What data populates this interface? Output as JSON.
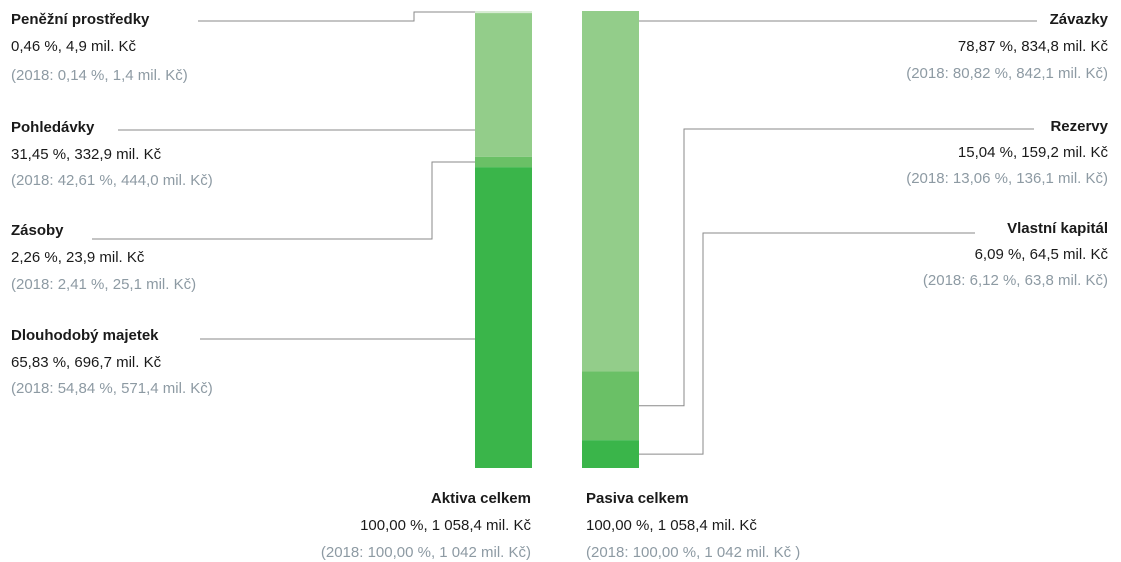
{
  "colors": {
    "dark": "#3ab54a",
    "mid": "#6ac066",
    "light": "#93cd8a",
    "lightest": "#d7ecd3",
    "prev_text": "#8d9aa3",
    "text": "#1a1a1a",
    "leader": "#8a8a8a"
  },
  "chart_data": {
    "type": "bar",
    "stacked": true,
    "bars": [
      {
        "name": "Aktiva",
        "total": {
          "label": "Aktiva celkem",
          "value": "100,00 %, 1 058,4 mil. Kč",
          "prev": "(2018: 100,00 %, 1 042 mil. Kč)"
        },
        "segments": [
          {
            "name": "Peněžní prostředky",
            "percent": 0.46,
            "amount": 4.9,
            "value": "0,46 %, 4,9 mil. Kč",
            "prev": "(2018: 0,14 %, 1,4 mil. Kč)",
            "color": "lightest"
          },
          {
            "name": "Pohledávky",
            "percent": 31.45,
            "amount": 332.9,
            "value": "31,45 %, 332,9 mil. Kč",
            "prev": "(2018: 42,61 %, 444,0 mil. Kč)",
            "color": "light"
          },
          {
            "name": "Zásoby",
            "percent": 2.26,
            "amount": 23.9,
            "value": "2,26 %, 23,9 mil. Kč",
            "prev": "(2018: 2,41 %, 25,1 mil. Kč)",
            "color": "mid"
          },
          {
            "name": "Dlouhodobý majetek",
            "percent": 65.83,
            "amount": 696.7,
            "value": "65,83 %, 696,7 mil. Kč",
            "prev": "(2018: 54,84 %, 571,4 mil. Kč)",
            "color": "dark"
          }
        ]
      },
      {
        "name": "Pasiva",
        "total": {
          "label": "Pasiva celkem",
          "value": "100,00 %, 1 058,4 mil. Kč",
          "prev": "(2018: 100,00 %, 1 042 mil. Kč )"
        },
        "segments": [
          {
            "name": "Závazky",
            "percent": 78.87,
            "amount": 834.8,
            "value": "78,87 %, 834,8 mil. Kč",
            "prev": "(2018: 80,82 %, 842,1 mil. Kč)",
            "color": "light"
          },
          {
            "name": "Rezervy",
            "percent": 15.04,
            "amount": 159.2,
            "value": "15,04 %, 159,2 mil. Kč",
            "prev": "(2018: 13,06 %, 136,1 mil. Kč)",
            "color": "mid"
          },
          {
            "name": "Vlastní kapitál",
            "percent": 6.09,
            "amount": 64.5,
            "value": "6,09 %, 64,5 mil. Kč",
            "prev": "(2018: 6,12 %, 63,8 mil. Kč)",
            "color": "dark"
          }
        ]
      }
    ]
  }
}
